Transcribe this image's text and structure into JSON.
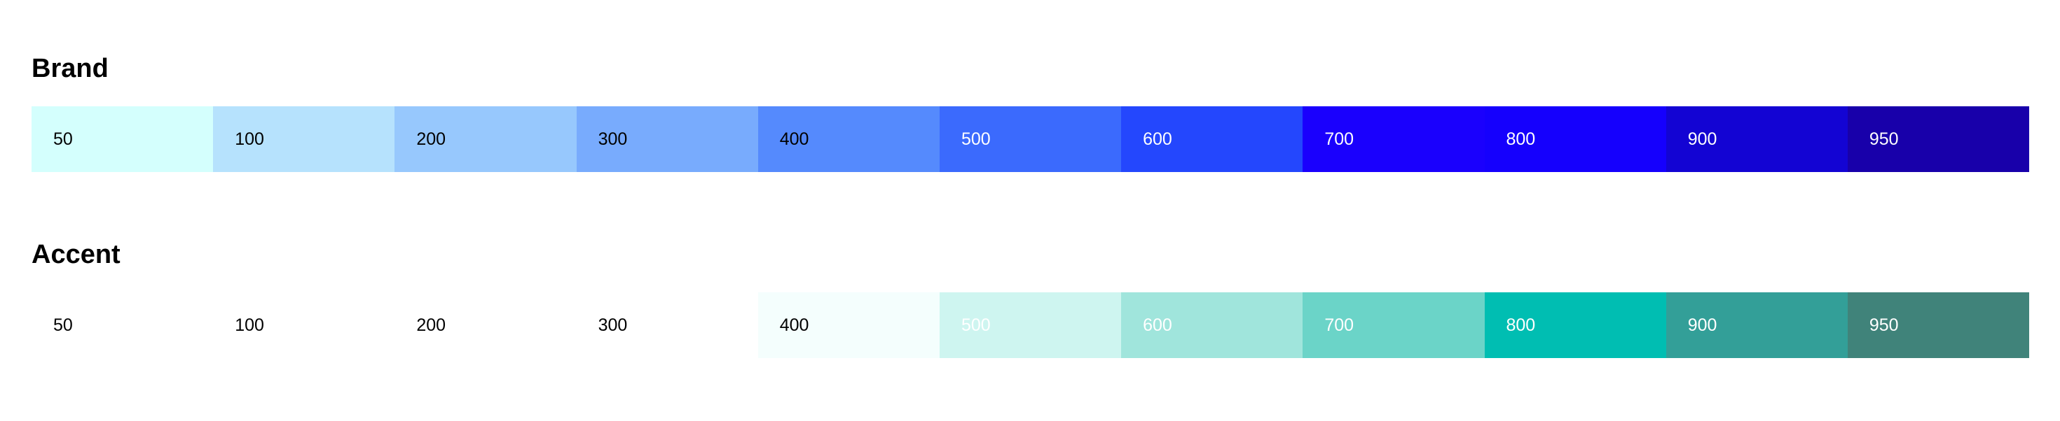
{
  "palettes": [
    {
      "id": "brand",
      "title": "Brand",
      "swatches": [
        {
          "label": "50",
          "color": "#d4fffd",
          "text_color": "#000000"
        },
        {
          "label": "100",
          "color": "#b6e2fd",
          "text_color": "#000000"
        },
        {
          "label": "200",
          "color": "#97c8fd",
          "text_color": "#000000"
        },
        {
          "label": "300",
          "color": "#78abfd",
          "text_color": "#000000"
        },
        {
          "label": "400",
          "color": "#558afd",
          "text_color": "#000000"
        },
        {
          "label": "500",
          "color": "#3b6afd",
          "text_color": "#ffffff"
        },
        {
          "label": "600",
          "color": "#2447fd",
          "text_color": "#ffffff"
        },
        {
          "label": "700",
          "color": "#1a00fd",
          "text_color": "#ffffff"
        },
        {
          "label": "800",
          "color": "#1500fd",
          "text_color": "#ffffff"
        },
        {
          "label": "900",
          "color": "#1304d3",
          "text_color": "#ffffff"
        },
        {
          "label": "950",
          "color": "#1800aa",
          "text_color": "#ffffff"
        }
      ]
    },
    {
      "id": "accent",
      "title": "Accent",
      "swatches": [
        {
          "label": "50",
          "color": "#ffffff",
          "text_color": "#000000"
        },
        {
          "label": "100",
          "color": "#ffffff",
          "text_color": "#000000"
        },
        {
          "label": "200",
          "color": "#ffffff",
          "text_color": "#000000"
        },
        {
          "label": "300",
          "color": "#ffffff",
          "text_color": "#000000"
        },
        {
          "label": "400",
          "color": "#f4fefd",
          "text_color": "#000000"
        },
        {
          "label": "500",
          "color": "#cef5f0",
          "text_color": "#ffffff"
        },
        {
          "label": "600",
          "color": "#a0e5dc",
          "text_color": "#ffffff"
        },
        {
          "label": "700",
          "color": "#6bd4c8",
          "text_color": "#ffffff"
        },
        {
          "label": "800",
          "color": "#00beb2",
          "text_color": "#ffffff"
        },
        {
          "label": "900",
          "color": "#339f98",
          "text_color": "#ffffff"
        },
        {
          "label": "950",
          "color": "#40837a",
          "text_color": "#ffffff"
        }
      ]
    }
  ]
}
